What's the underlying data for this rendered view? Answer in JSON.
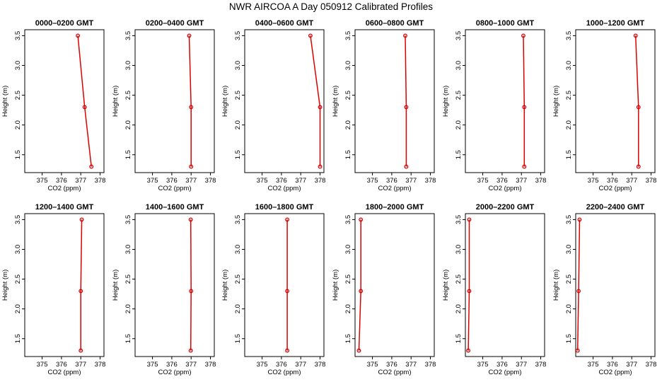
{
  "title": "NWR AIRCOA A  Day 050912  Calibrated Profiles",
  "colors": {
    "series": "#dd0000",
    "axes": "#000000"
  },
  "chart_data": [
    {
      "type": "line",
      "title": "0000–0200 GMT",
      "xlabel": "CO2 (ppm)",
      "ylabel": "Height (m)",
      "x_ticks": [
        375,
        376,
        377,
        378
      ],
      "y_ticks": [
        1.5,
        2.0,
        2.5,
        3.0,
        3.5
      ],
      "xlim": [
        374.1,
        378.2
      ],
      "ylim": [
        1.2,
        3.6
      ],
      "x": [
        376.85,
        377.2,
        377.55
      ],
      "y": [
        3.5,
        2.3,
        1.3
      ]
    },
    {
      "type": "line",
      "title": "0200–0400 GMT",
      "xlabel": "CO2 (ppm)",
      "ylabel": "Height (m)",
      "x_ticks": [
        375,
        376,
        377,
        378
      ],
      "y_ticks": [
        1.5,
        2.0,
        2.5,
        3.0,
        3.5
      ],
      "xlim": [
        374.1,
        378.2
      ],
      "ylim": [
        1.2,
        3.6
      ],
      "x": [
        376.9,
        377.0,
        377.0
      ],
      "y": [
        3.5,
        2.3,
        1.3
      ]
    },
    {
      "type": "line",
      "title": "0400–0600 GMT",
      "xlabel": "CO2 (ppm)",
      "ylabel": "Height (m)",
      "x_ticks": [
        375,
        376,
        377,
        378
      ],
      "y_ticks": [
        1.5,
        2.0,
        2.5,
        3.0,
        3.5
      ],
      "xlim": [
        374.1,
        378.2
      ],
      "ylim": [
        1.2,
        3.6
      ],
      "x": [
        377.5,
        378.0,
        378.0
      ],
      "y": [
        3.5,
        2.3,
        1.3
      ]
    },
    {
      "type": "line",
      "title": "0600–0800 GMT",
      "xlabel": "CO2 (ppm)",
      "ylabel": "Height (m)",
      "x_ticks": [
        375,
        376,
        377,
        378
      ],
      "y_ticks": [
        1.5,
        2.0,
        2.5,
        3.0,
        3.5
      ],
      "xlim": [
        374.1,
        378.2
      ],
      "ylim": [
        1.2,
        3.6
      ],
      "x": [
        376.7,
        376.75,
        376.75
      ],
      "y": [
        3.5,
        2.3,
        1.3
      ]
    },
    {
      "type": "line",
      "title": "0800–1000 GMT",
      "xlabel": "CO2 (ppm)",
      "ylabel": "Height (m)",
      "x_ticks": [
        375,
        376,
        377,
        378
      ],
      "y_ticks": [
        1.5,
        2.0,
        2.5,
        3.0,
        3.5
      ],
      "xlim": [
        374.1,
        378.2
      ],
      "ylim": [
        1.2,
        3.6
      ],
      "x": [
        377.1,
        377.15,
        377.15
      ],
      "y": [
        3.5,
        2.3,
        1.3
      ]
    },
    {
      "type": "line",
      "title": "1000–1200 GMT",
      "xlabel": "CO2 (ppm)",
      "ylabel": "Height (m)",
      "x_ticks": [
        375,
        376,
        377,
        378
      ],
      "y_ticks": [
        1.5,
        2.0,
        2.5,
        3.0,
        3.5
      ],
      "xlim": [
        374.1,
        378.2
      ],
      "ylim": [
        1.2,
        3.6
      ],
      "x": [
        377.2,
        377.35,
        377.35
      ],
      "y": [
        3.5,
        2.3,
        1.3
      ]
    },
    {
      "type": "line",
      "title": "1200–1400 GMT",
      "xlabel": "CO2 (ppm)",
      "ylabel": "Height (m)",
      "x_ticks": [
        375,
        376,
        377,
        378
      ],
      "y_ticks": [
        1.5,
        2.0,
        2.5,
        3.0,
        3.5
      ],
      "xlim": [
        374.1,
        378.2
      ],
      "ylim": [
        1.2,
        3.6
      ],
      "x": [
        377.05,
        377.0,
        377.0
      ],
      "y": [
        3.5,
        2.3,
        1.3
      ]
    },
    {
      "type": "line",
      "title": "1400–1600 GMT",
      "xlabel": "CO2 (ppm)",
      "ylabel": "Height (m)",
      "x_ticks": [
        375,
        376,
        377,
        378
      ],
      "y_ticks": [
        1.5,
        2.0,
        2.5,
        3.0,
        3.5
      ],
      "xlim": [
        374.1,
        378.2
      ],
      "ylim": [
        1.2,
        3.6
      ],
      "x": [
        376.98,
        377.0,
        376.98
      ],
      "y": [
        3.5,
        2.3,
        1.3
      ]
    },
    {
      "type": "line",
      "title": "1600–1800 GMT",
      "xlabel": "CO2 (ppm)",
      "ylabel": "Height (m)",
      "x_ticks": [
        375,
        376,
        377,
        378
      ],
      "y_ticks": [
        1.5,
        2.0,
        2.5,
        3.0,
        3.5
      ],
      "xlim": [
        374.1,
        378.2
      ],
      "ylim": [
        1.2,
        3.6
      ],
      "x": [
        376.3,
        376.3,
        376.3
      ],
      "y": [
        3.5,
        2.3,
        1.3
      ]
    },
    {
      "type": "line",
      "title": "1800–2000 GMT",
      "xlabel": "CO2 (ppm)",
      "ylabel": "Height (m)",
      "x_ticks": [
        375,
        376,
        377,
        378
      ],
      "y_ticks": [
        1.5,
        2.0,
        2.5,
        3.0,
        3.5
      ],
      "xlim": [
        374.1,
        378.2
      ],
      "ylim": [
        1.2,
        3.6
      ],
      "x": [
        374.4,
        374.4,
        374.3
      ],
      "y": [
        3.5,
        2.3,
        1.3
      ]
    },
    {
      "type": "line",
      "title": "2000–2200 GMT",
      "xlabel": "CO2 (ppm)",
      "ylabel": "Height (m)",
      "x_ticks": [
        375,
        376,
        377,
        378
      ],
      "y_ticks": [
        1.5,
        2.0,
        2.5,
        3.0,
        3.5
      ],
      "xlim": [
        374.1,
        378.2
      ],
      "ylim": [
        1.2,
        3.6
      ],
      "x": [
        374.3,
        374.3,
        374.25
      ],
      "y": [
        3.5,
        2.3,
        1.3
      ]
    },
    {
      "type": "line",
      "title": "2200–2400 GMT",
      "xlabel": "CO2 (ppm)",
      "ylabel": "Height (m)",
      "x_ticks": [
        375,
        376,
        377,
        378
      ],
      "y_ticks": [
        1.5,
        2.0,
        2.5,
        3.0,
        3.5
      ],
      "xlim": [
        374.1,
        378.2
      ],
      "ylim": [
        1.2,
        3.6
      ],
      "x": [
        374.3,
        374.25,
        374.2
      ],
      "y": [
        3.5,
        2.3,
        1.3
      ]
    }
  ]
}
